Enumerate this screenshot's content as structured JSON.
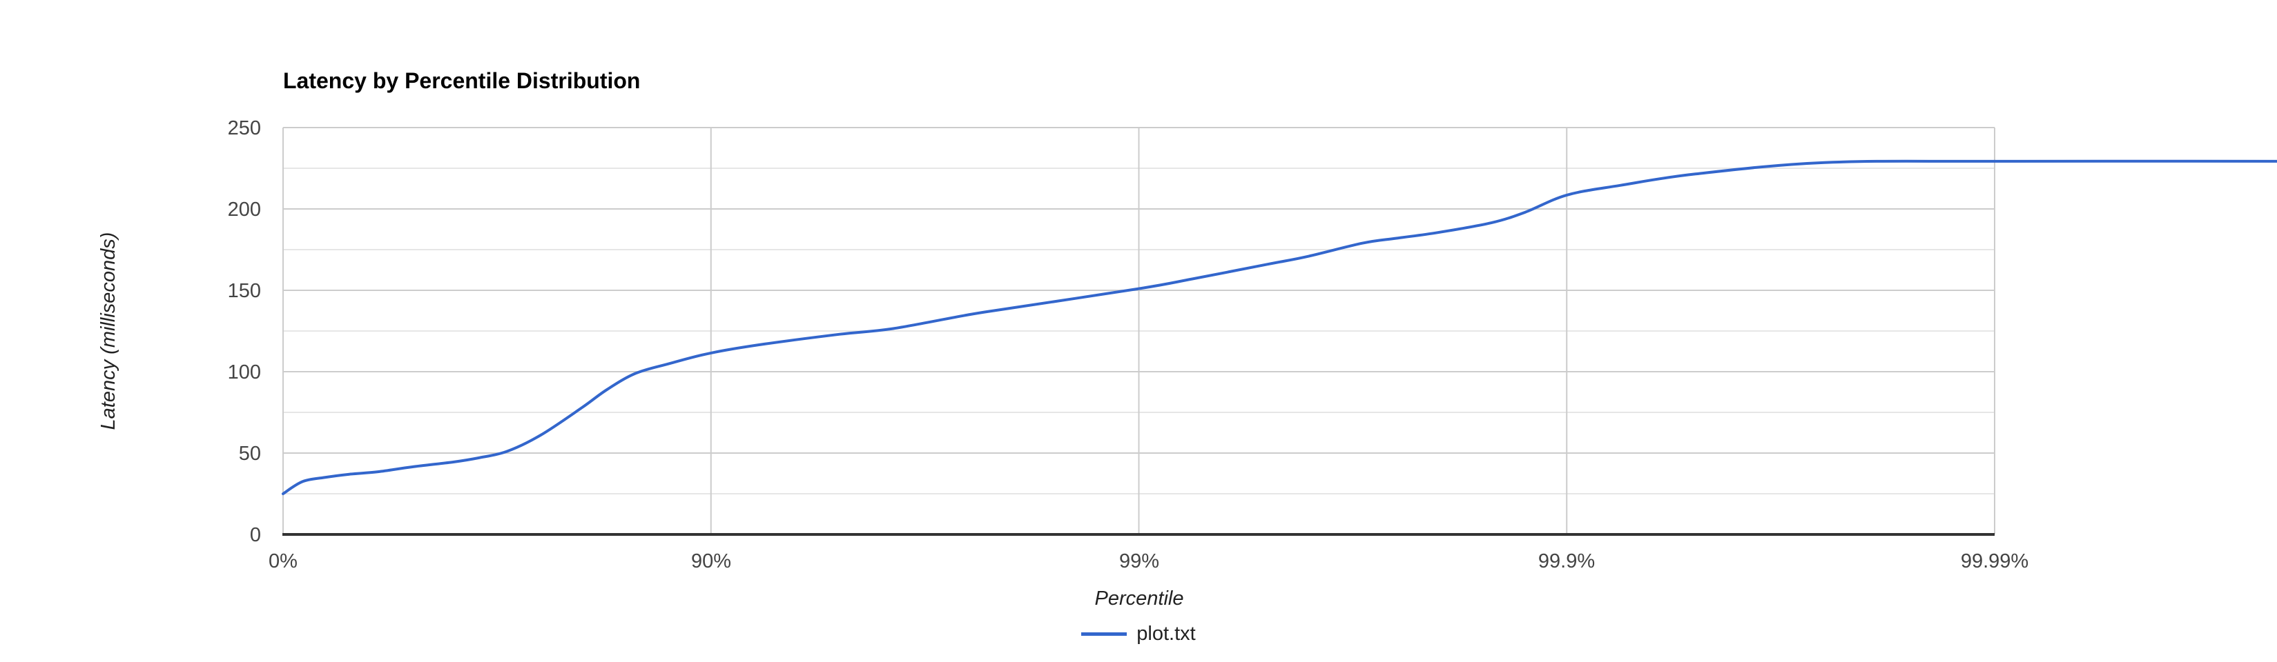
{
  "title": "Latency by Percentile Distribution",
  "legend": {
    "items": [
      {
        "label": "plot.txt",
        "color": "#3366cc"
      }
    ]
  },
  "colors": {
    "series_line": "#3366cc",
    "major_grid": "#cccccc",
    "minor_grid": "#e6e6e6",
    "axis_baseline": "#333333",
    "tick_text": "#444444",
    "title_text": "#000000",
    "background": "#ffffff"
  },
  "chart_data": {
    "type": "line",
    "title": "Latency by Percentile Distribution",
    "xlabel": "Percentile",
    "ylabel": "Latency (milliseconds)",
    "x_scale": "log10(1/(1-percentile)), one gridline per decade",
    "xlim_decades": [
      0,
      4
    ],
    "ylim": [
      0,
      250
    ],
    "grid": true,
    "legend_position": "bottom-center",
    "x_ticks": [
      {
        "label": "0%",
        "decade": 0
      },
      {
        "label": "90%",
        "decade": 1
      },
      {
        "label": "99%",
        "decade": 2
      },
      {
        "label": "99.9%",
        "decade": 3
      },
      {
        "label": "99.99%",
        "decade": 4
      }
    ],
    "y_ticks": [
      0,
      50,
      100,
      150,
      200,
      250
    ],
    "y_minor_ticks": [
      25,
      75,
      125,
      175,
      225
    ],
    "series": [
      {
        "name": "plot.txt",
        "color": "#3366cc",
        "points": [
          [
            0,
            25
          ],
          [
            10,
            32.5
          ],
          [
            20,
            35
          ],
          [
            30,
            37
          ],
          [
            40,
            38.5
          ],
          [
            50,
            41.5
          ],
          [
            60,
            44.5
          ],
          [
            65,
            47
          ],
          [
            70,
            51
          ],
          [
            75,
            61
          ],
          [
            80,
            78
          ],
          [
            82.5,
            89
          ],
          [
            85,
            99
          ],
          [
            87.5,
            105
          ],
          [
            90,
            111.5
          ],
          [
            92.5,
            117
          ],
          [
            95,
            123
          ],
          [
            96.25,
            126.5
          ],
          [
            97.5,
            135
          ],
          [
            98,
            139
          ],
          [
            99,
            151
          ],
          [
            99.25,
            157
          ],
          [
            99.5,
            166
          ],
          [
            99.6,
            171
          ],
          [
            99.7,
            179
          ],
          [
            99.75,
            182
          ],
          [
            99.8,
            185.5
          ],
          [
            99.85,
            191.5
          ],
          [
            99.875,
            198
          ],
          [
            99.9,
            208.5
          ],
          [
            99.925,
            214.5
          ],
          [
            99.95,
            221.5
          ],
          [
            99.975,
            228.5
          ],
          [
            99.99,
            229.3
          ]
        ],
        "plateau_value": 229.3,
        "line_extends_to_right_edge": true
      }
    ]
  }
}
